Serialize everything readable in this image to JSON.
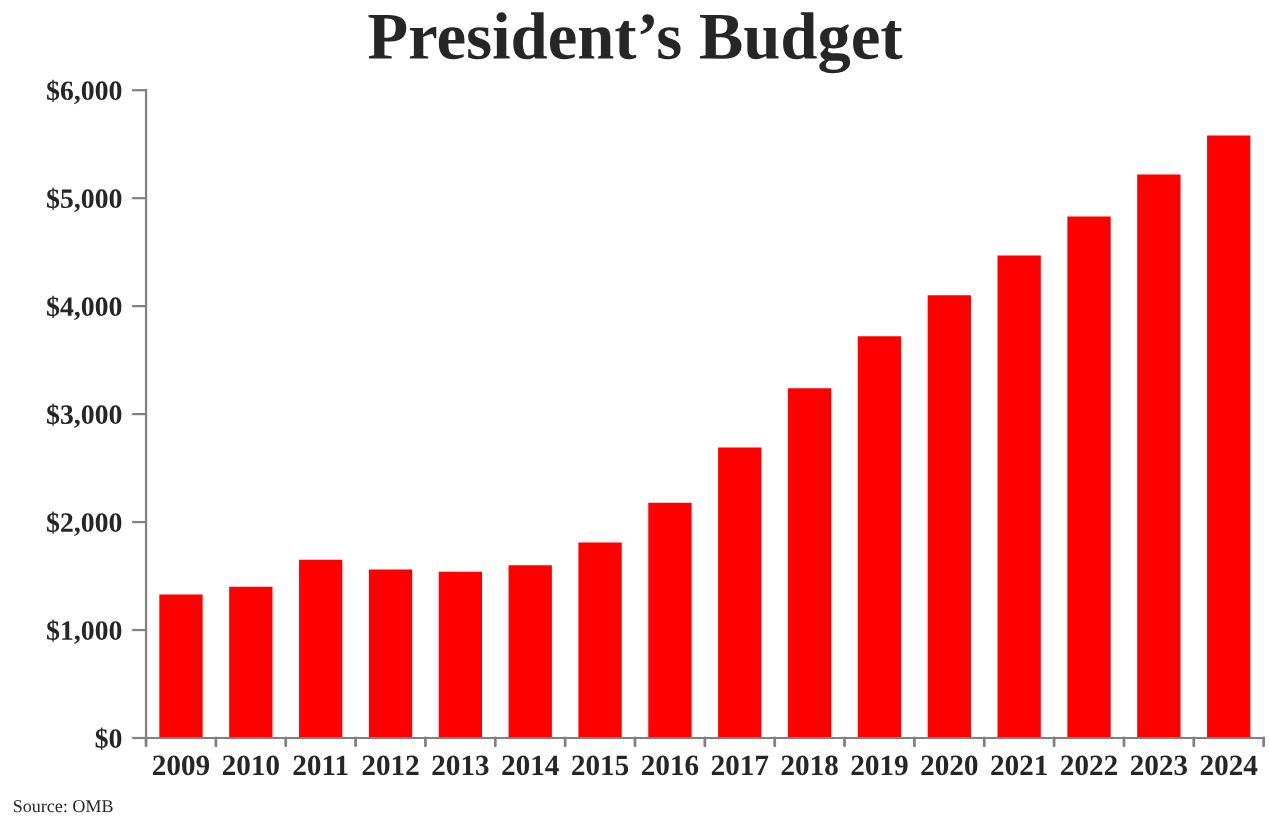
{
  "chart_data": {
    "type": "bar",
    "title": "President’s Budget",
    "categories": [
      "2009",
      "2010",
      "2011",
      "2012",
      "2013",
      "2014",
      "2015",
      "2016",
      "2017",
      "2018",
      "2019",
      "2020",
      "2021",
      "2022",
      "2023",
      "2024"
    ],
    "values": [
      1330,
      1400,
      1650,
      1560,
      1540,
      1600,
      1810,
      2180,
      2690,
      3240,
      3720,
      4100,
      4470,
      4830,
      5220,
      5580
    ],
    "color": "#ff0000",
    "ylim": [
      0,
      6000
    ],
    "yticks": [
      {
        "value": 0,
        "label": "$0"
      },
      {
        "value": 1000,
        "label": "$1,000"
      },
      {
        "value": 2000,
        "label": "$2,000"
      },
      {
        "value": 3000,
        "label": "$3,000"
      },
      {
        "value": 4000,
        "label": "$4,000"
      },
      {
        "value": 5000,
        "label": "$5,000"
      },
      {
        "value": 6000,
        "label": "$6,000"
      }
    ],
    "grid": false,
    "annotations": [
      "Source: OMB"
    ]
  }
}
